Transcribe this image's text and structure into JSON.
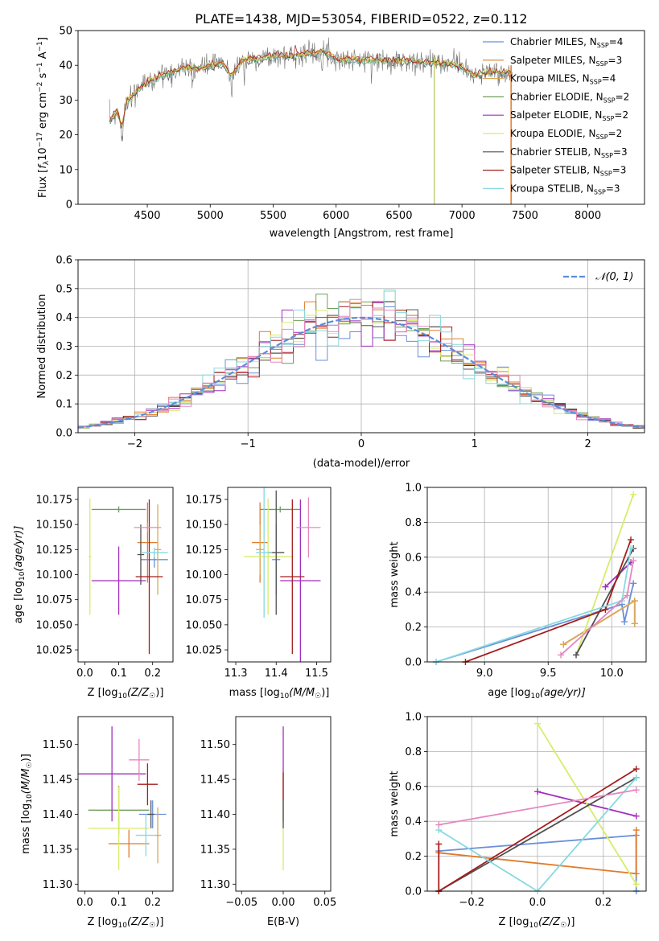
{
  "figure_title": "PLATE=1438, MJD=53054, FIBERID=0522, z=0.112",
  "colors": {
    "Chabrier MILES": "#6a8fd8",
    "Salpeter MILES": "#e07b2a",
    "Kroupa MILES": "#d9a95b",
    "Chabrier ELODIE": "#6f9e5a",
    "Salpeter ELODIE": "#a02fbc",
    "Kroupa ELODIE": "#d7ec6a",
    "Chabrier STELIB": "#505050",
    "Salpeter STELIB": "#a51d1d",
    "Kroupa STELIB": "#86d9e0",
    "normal": "#5b8dd9",
    "pink": "#e587c0",
    "grid": "#b0b0b0"
  },
  "chart_data": [
    {
      "id": "spectrum",
      "type": "line",
      "title": "PLATE=1438, MJD=53054, FIBERID=0522, z=0.112",
      "xlabel": "wavelength [Angstrom, rest frame]",
      "ylabel_parts": [
        "Flux [",
        "f",
        "λ",
        "10",
        "−17",
        " erg cm",
        "−2",
        " s",
        "−1",
        " A",
        "−1",
        "]"
      ],
      "xlim": [
        3950,
        8450
      ],
      "ylim": [
        0,
        50
      ],
      "xticks": [
        4500,
        5000,
        5500,
        6000,
        6500,
        7000,
        7500,
        8000
      ],
      "yticks": [
        0,
        10,
        20,
        30,
        40,
        50
      ],
      "grid": false,
      "legend_position": "right",
      "legend": [
        {
          "name": "Chabrier MILES",
          "nssp": "4"
        },
        {
          "name": "Salpeter MILES",
          "nssp": "3"
        },
        {
          "name": "Kroupa MILES",
          "nssp": "4"
        },
        {
          "name": "Chabrier ELODIE",
          "nssp": "2"
        },
        {
          "name": "Salpeter ELODIE",
          "nssp": "2"
        },
        {
          "name": "Kroupa ELODIE",
          "nssp": "2"
        },
        {
          "name": "Chabrier STELIB",
          "nssp": "3"
        },
        {
          "name": "Salpeter STELIB",
          "nssp": "3"
        },
        {
          "name": "Kroupa STELIB",
          "nssp": "3"
        }
      ],
      "nssp_label": "N",
      "nssp_sub": "SSP",
      "continuum": [
        [
          4200,
          24
        ],
        [
          4260,
          27
        ],
        [
          4300,
          22
        ],
        [
          4330,
          29
        ],
        [
          4400,
          32
        ],
        [
          4500,
          35
        ],
        [
          4600,
          37
        ],
        [
          4700,
          38
        ],
        [
          4800,
          39.5
        ],
        [
          4900,
          39
        ],
        [
          5000,
          40
        ],
        [
          5100,
          40.5
        ],
        [
          5170,
          37
        ],
        [
          5250,
          41.5
        ],
        [
          5400,
          42
        ],
        [
          5500,
          42.5
        ],
        [
          5700,
          43
        ],
        [
          5890,
          44
        ],
        [
          6000,
          42
        ],
        [
          6200,
          41.5
        ],
        [
          6500,
          41.5
        ],
        [
          6700,
          41
        ],
        [
          6900,
          40.5
        ],
        [
          7000,
          39.5
        ],
        [
          7100,
          37
        ],
        [
          7200,
          38
        ],
        [
          7400,
          38
        ]
      ],
      "absorption_lines": [
        [
          4300,
          17
        ],
        [
          4861,
          33
        ],
        [
          5170,
          30
        ],
        [
          5270,
          34
        ],
        [
          5890,
          37
        ],
        [
          6563,
          38
        ]
      ],
      "spikes": [
        [
          6780,
          0
        ],
        [
          7390,
          0
        ]
      ]
    },
    {
      "id": "residuals",
      "type": "step",
      "xlabel": "(data-model)/error",
      "ylabel": "Normed distribution",
      "xlim": [
        -2.5,
        2.5
      ],
      "ylim": [
        0,
        0.6
      ],
      "xticks": [
        -2,
        -1,
        0,
        1,
        2
      ],
      "yticks": [
        0.0,
        0.1,
        0.2,
        0.3,
        0.4,
        0.5,
        0.6
      ],
      "grid": true,
      "legend_position": "top-right",
      "legend_label": "𝒩(0, 1)"
    },
    {
      "id": "age_vs_Z",
      "type": "errorbar",
      "xlabel_parts": [
        "Z [log",
        "10",
        "(Z/Z",
        "☉",
        ")]"
      ],
      "ylabel_parts": [
        "age  [log",
        "10",
        "(age/yr)]"
      ],
      "xlim": [
        -0.02,
        0.26
      ],
      "ylim": [
        10.013,
        10.187
      ],
      "xticks": [
        0.0,
        0.1,
        0.2
      ],
      "yticks": [
        10.025,
        10.05,
        10.075,
        10.1,
        10.125,
        10.15,
        10.175
      ],
      "grid": false,
      "points": [
        {
          "c": "Chabrier MILES",
          "x": 0.205,
          "xe": 0.04,
          "y": 10.115,
          "ye": 0.008
        },
        {
          "c": "Salpeter MILES",
          "x": 0.185,
          "xe": 0.03,
          "y": 10.132,
          "ye": 0.04
        },
        {
          "c": "Kroupa MILES",
          "x": 0.215,
          "xe": 0.01,
          "y": 10.125,
          "ye": 0.045
        },
        {
          "c": "Chabrier ELODIE",
          "x": 0.1,
          "xe": 0.08,
          "y": 10.165,
          "ye": 0.003
        },
        {
          "c": "Salpeter ELODIE",
          "x": 0.1,
          "xe": 0.08,
          "y": 10.094,
          "ye": 0.034
        },
        {
          "c": "Kroupa ELODIE",
          "x": 0.015,
          "xe": 0.004,
          "y": 10.118,
          "ye": 0.058
        },
        {
          "c": "Chabrier STELIB",
          "x": 0.165,
          "xe": 0.01,
          "y": 10.12,
          "ye": 0.03
        },
        {
          "c": "Salpeter STELIB",
          "x": 0.19,
          "xe": 0.04,
          "y": 10.098,
          "ye": 0.077
        },
        {
          "c": "Kroupa STELIB",
          "x": 0.205,
          "xe": 0.04,
          "y": 10.122,
          "ye": 0.005
        },
        {
          "c": "pink",
          "x": 0.185,
          "xe": 0.04,
          "y": 10.147,
          "ye": 0.005
        }
      ]
    },
    {
      "id": "age_vs_mass",
      "type": "errorbar",
      "xlabel_parts": [
        "mass [log",
        "10",
        "(M/M",
        "☉",
        ")]"
      ],
      "xlim": [
        11.28,
        11.535
      ],
      "ylim": [
        10.013,
        10.187
      ],
      "xticks": [
        11.3,
        11.4,
        11.5
      ],
      "yticks": [
        10.025,
        10.05,
        10.075,
        10.1,
        10.125,
        10.15,
        10.175
      ],
      "grid": false,
      "points": [
        {
          "c": "Chabrier MILES",
          "x": 11.4,
          "xe": 0.01,
          "y": 10.115,
          "ye": 0.035
        },
        {
          "c": "Salpeter MILES",
          "x": 11.36,
          "xe": 0.02,
          "y": 10.132,
          "ye": 0.04
        },
        {
          "c": "Kroupa MILES",
          "x": 11.36,
          "xe": 0.01,
          "y": 10.125,
          "ye": 0.025
        },
        {
          "c": "Chabrier ELODIE",
          "x": 11.41,
          "xe": 0.05,
          "y": 10.165,
          "ye": 0.003
        },
        {
          "c": "Salpeter ELODIE",
          "x": 11.46,
          "xe": 0.05,
          "y": 10.094,
          "ye": 0.081
        },
        {
          "c": "Kroupa ELODIE",
          "x": 11.38,
          "xe": 0.06,
          "y": 10.118,
          "ye": 0.058
        },
        {
          "c": "Chabrier STELIB",
          "x": 11.4,
          "xe": 0.02,
          "y": 10.122,
          "ye": 0.062
        },
        {
          "c": "Salpeter STELIB",
          "x": 11.44,
          "xe": 0.03,
          "y": 10.098,
          "ye": 0.077
        },
        {
          "c": "Kroupa STELIB",
          "x": 11.37,
          "xe": 0.02,
          "y": 10.122,
          "ye": 0.065
        },
        {
          "c": "pink",
          "x": 11.48,
          "xe": 0.03,
          "y": 10.147,
          "ye": 0.03
        }
      ]
    },
    {
      "id": "weight_vs_age",
      "type": "line",
      "xlabel_parts": [
        "age  [log",
        "10",
        "(age/yr)]"
      ],
      "ylabel": "mass weight",
      "xlim": [
        8.55,
        10.27
      ],
      "ylim": [
        0,
        1
      ],
      "xticks": [
        9.0,
        9.5,
        10.0
      ],
      "yticks": [
        0.0,
        0.2,
        0.4,
        0.6,
        0.8,
        1.0
      ],
      "grid": true,
      "series": [
        {
          "c": "Chabrier MILES",
          "x": [
            8.62,
            10.08,
            10.1,
            10.17
          ],
          "y": [
            0.0,
            0.33,
            0.23,
            0.45
          ]
        },
        {
          "c": "Salpeter MILES",
          "x": [
            9.62,
            10.18,
            10.18
          ],
          "y": [
            0.1,
            0.35,
            0.22
          ]
        },
        {
          "c": "Kroupa MILES",
          "x": [
            9.62,
            10.18,
            10.18
          ],
          "y": [
            0.1,
            0.35,
            0.22
          ]
        },
        {
          "c": "Salpeter ELODIE",
          "x": [
            9.95,
            10.15
          ],
          "y": [
            0.43,
            0.57
          ]
        },
        {
          "c": "Kroupa ELODIE",
          "x": [
            9.72,
            10.17
          ],
          "y": [
            0.04,
            0.96
          ]
        },
        {
          "c": "Chabrier STELIB",
          "x": [
            9.72,
            10.17
          ],
          "y": [
            0.04,
            0.65
          ]
        },
        {
          "c": "Salpeter STELIB",
          "x": [
            8.85,
            9.95,
            10.15
          ],
          "y": [
            0.0,
            0.3,
            0.7
          ]
        },
        {
          "c": "Kroupa STELIB",
          "x": [
            8.62,
            10.08,
            10.15
          ],
          "y": [
            0.0,
            0.35,
            0.65
          ]
        },
        {
          "c": "pink",
          "x": [
            9.6,
            10.12,
            10.17
          ],
          "y": [
            0.04,
            0.38,
            0.58
          ]
        }
      ]
    },
    {
      "id": "mass_vs_Z",
      "type": "errorbar",
      "xlabel_parts": [
        "Z [log",
        "10",
        "(Z/Z",
        "☉",
        ")]"
      ],
      "ylabel_parts": [
        "mass [log",
        "10",
        "(M/M",
        "☉",
        ")]"
      ],
      "xlim": [
        -0.02,
        0.26
      ],
      "ylim": [
        11.29,
        11.54
      ],
      "xticks": [
        0.0,
        0.1,
        0.2
      ],
      "yticks": [
        11.3,
        11.35,
        11.4,
        11.45,
        11.5
      ],
      "grid": false,
      "points": [
        {
          "c": "Chabrier MILES",
          "x": 0.2,
          "xe": 0.04,
          "y": 11.4,
          "ye": 0.02
        },
        {
          "c": "Salpeter MILES",
          "x": 0.13,
          "xe": 0.06,
          "y": 11.358,
          "ye": 0.02
        },
        {
          "c": "Kroupa MILES",
          "x": 0.215,
          "xe": 0.01,
          "y": 11.37,
          "ye": 0.04
        },
        {
          "c": "Chabrier ELODIE",
          "x": 0.1,
          "xe": 0.09,
          "y": 11.406,
          "ye": 0.035
        },
        {
          "c": "Salpeter ELODIE",
          "x": 0.08,
          "xe": 0.1,
          "y": 11.458,
          "ye": 0.068
        },
        {
          "c": "Kroupa ELODIE",
          "x": 0.1,
          "xe": 0.09,
          "y": 11.38,
          "ye": 0.06
        },
        {
          "c": "Chabrier STELIB",
          "x": 0.195,
          "xe": 0.01,
          "y": 11.4,
          "ye": 0.02
        },
        {
          "c": "Salpeter STELIB",
          "x": 0.185,
          "xe": 0.03,
          "y": 11.443,
          "ye": 0.03
        },
        {
          "c": "Kroupa STELIB",
          "x": 0.18,
          "xe": 0.03,
          "y": 11.37,
          "ye": 0.03
        },
        {
          "c": "pink",
          "x": 0.16,
          "xe": 0.03,
          "y": 11.478,
          "ye": 0.03
        }
      ]
    },
    {
      "id": "mass_vs_ebv",
      "type": "errorbar",
      "xlabel": "E(B-V)",
      "xlim": [
        -0.057,
        0.057
      ],
      "ylim": [
        11.29,
        11.54
      ],
      "xticks": [
        -0.05,
        0.0,
        0.05
      ],
      "xtick_labels": [
        "−0.05",
        "0.00",
        "0.05"
      ],
      "yticks": [
        11.3,
        11.35,
        11.4,
        11.45,
        11.5
      ],
      "grid": false,
      "points": [
        {
          "c": "Salpeter ELODIE",
          "x": 0.0,
          "xe": 0.0,
          "y": 11.458,
          "ye": 0.068
        },
        {
          "c": "Kroupa ELODIE",
          "x": 0.0,
          "xe": 0.0,
          "y": 11.38,
          "ye": 0.06
        },
        {
          "c": "Chabrier STELIB",
          "x": 0.0,
          "xe": 0.0,
          "y": 11.4,
          "ye": 0.02
        },
        {
          "c": "Salpeter STELIB",
          "x": 0.0,
          "xe": 0.0,
          "y": 11.44,
          "ye": 0.02
        }
      ]
    },
    {
      "id": "weight_vs_Z",
      "type": "line",
      "xlabel_parts": [
        "Z [log",
        "10",
        "(Z/Z",
        "☉",
        ")]"
      ],
      "ylabel": "mass weight",
      "xlim": [
        -0.335,
        0.33
      ],
      "ylim": [
        0,
        1
      ],
      "xticks": [
        -0.2,
        0.0,
        0.2
      ],
      "xtick_labels": [
        "−0.2",
        "0.0",
        "0.2"
      ],
      "yticks": [
        0.0,
        0.2,
        0.4,
        0.6,
        0.8,
        1.0
      ],
      "grid": true,
      "series": [
        {
          "c": "Chabrier MILES",
          "x": [
            -0.3,
            0.3,
            0.3
          ],
          "y": [
            0.23,
            0.32,
            0.0
          ]
        },
        {
          "c": "Salpeter MILES",
          "x": [
            -0.3,
            0.3,
            0.3
          ],
          "y": [
            0.22,
            0.1,
            0.35
          ]
        },
        {
          "c": "Salpeter ELODIE",
          "x": [
            0.0,
            0.3
          ],
          "y": [
            0.57,
            0.43
          ]
        },
        {
          "c": "Kroupa ELODIE",
          "x": [
            0.0,
            0.3
          ],
          "y": [
            0.96,
            0.04
          ]
        },
        {
          "c": "Chabrier STELIB",
          "x": [
            -0.3,
            0.3
          ],
          "y": [
            0.0,
            0.65
          ]
        },
        {
          "c": "Salpeter STELIB",
          "x": [
            -0.3,
            -0.3,
            0.3
          ],
          "y": [
            0.27,
            0.0,
            0.7
          ]
        },
        {
          "c": "Kroupa STELIB",
          "x": [
            -0.3,
            0.0,
            0.3
          ],
          "y": [
            0.35,
            0.0,
            0.65
          ]
        },
        {
          "c": "pink",
          "x": [
            -0.3,
            0.3
          ],
          "y": [
            0.38,
            0.58
          ]
        }
      ]
    }
  ]
}
